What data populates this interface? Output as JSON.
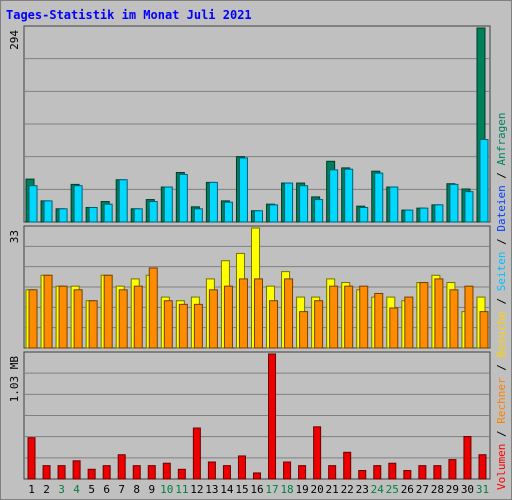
{
  "title": "Tages-Statistik im Monat Juli 2021",
  "legend": [
    {
      "label": "Volumen",
      "color": "#ff0000"
    },
    {
      "label": "Rechner",
      "color": "#ff8000"
    },
    {
      "label": "Besuche",
      "color": "#ffd000"
    },
    {
      "label": "Seiten",
      "color": "#00bfff"
    },
    {
      "label": "Dateien",
      "color": "#0040ff"
    },
    {
      "label": "Anfragen",
      "color": "#008060"
    }
  ],
  "legend_separator": "/",
  "weekend_color": "#008040",
  "chart_data": [
    {
      "type": "bar",
      "name": "top",
      "ytick_label": "294",
      "ymax": 294,
      "series": [
        {
          "name": "Anfragen",
          "color": "#00805a",
          "values": [
            65,
            32,
            20,
            57,
            22,
            31,
            64,
            20,
            34,
            53,
            75,
            23,
            60,
            32,
            99,
            17,
            27,
            59,
            59,
            38,
            92,
            82,
            24,
            77,
            53,
            18,
            21,
            26,
            58,
            50,
            294
          ]
        },
        {
          "name": "Seiten",
          "color": "#00d8ff",
          "values": [
            55,
            32,
            20,
            55,
            22,
            27,
            64,
            20,
            31,
            53,
            72,
            20,
            60,
            30,
            97,
            17,
            26,
            59,
            55,
            34,
            79,
            80,
            22,
            74,
            53,
            18,
            21,
            26,
            57,
            46,
            125
          ]
        }
      ]
    },
    {
      "type": "bar",
      "name": "middle",
      "ytick_label": "33",
      "ymax": 33,
      "series": [
        {
          "name": "Besuche",
          "color": "#ffff00",
          "values": [
            16,
            20,
            17,
            17,
            13,
            20,
            17,
            19,
            20,
            14,
            13,
            14,
            19,
            24,
            26,
            33,
            17,
            21,
            14,
            14,
            19,
            18,
            16,
            14,
            14,
            13,
            18,
            20,
            18,
            10,
            14
          ]
        },
        {
          "name": "Rechner",
          "color": "#ff8c00",
          "values": [
            16,
            20,
            17,
            16,
            13,
            20,
            16,
            17,
            22,
            13,
            12,
            12,
            16,
            17,
            19,
            19,
            13,
            19,
            10,
            13,
            17,
            17,
            17,
            15,
            11,
            14,
            18,
            19,
            16,
            17,
            10
          ]
        }
      ]
    },
    {
      "type": "bar",
      "name": "bottom",
      "ytick_label": "1.03 MB",
      "ymax": 1.03,
      "series": [
        {
          "name": "Volumen",
          "color": "#ee0000",
          "values": [
            0.34,
            0.11,
            0.11,
            0.15,
            0.08,
            0.11,
            0.2,
            0.11,
            0.11,
            0.13,
            0.08,
            0.42,
            0.14,
            0.11,
            0.19,
            0.05,
            1.03,
            0.14,
            0.11,
            0.43,
            0.11,
            0.22,
            0.07,
            0.11,
            0.13,
            0.07,
            0.11,
            0.11,
            0.16,
            0.35,
            0.2
          ]
        }
      ]
    }
  ],
  "days": [
    "1",
    "2",
    "3",
    "4",
    "5",
    "6",
    "7",
    "8",
    "9",
    "10",
    "11",
    "12",
    "13",
    "14",
    "15",
    "16",
    "17",
    "18",
    "19",
    "20",
    "21",
    "22",
    "23",
    "24",
    "25",
    "26",
    "27",
    "28",
    "29",
    "30",
    "31"
  ],
  "weekend_days": [
    "3",
    "4",
    "10",
    "11",
    "17",
    "18",
    "24",
    "25",
    "31"
  ]
}
